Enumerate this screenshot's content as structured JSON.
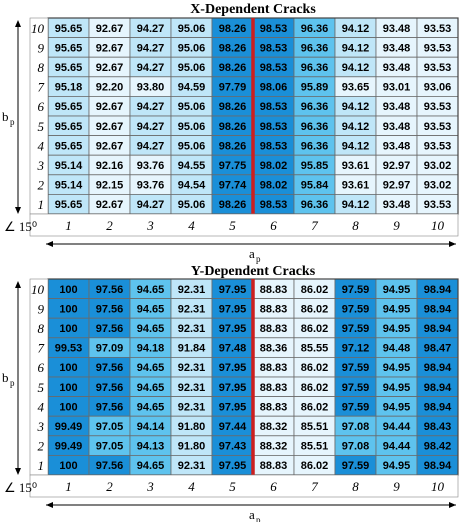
{
  "chart_data": [
    {
      "type": "heatmap",
      "title": "X-Dependent Cracks",
      "xlabel": "a",
      "xlabel_sub": "p",
      "ylabel": "b",
      "ylabel_sub": "p",
      "corner_label": "∠ 15⁰",
      "x_categories": [
        "1",
        "2",
        "3",
        "4",
        "5",
        "6",
        "7",
        "8",
        "9",
        "10"
      ],
      "y_categories": [
        "10",
        "9",
        "8",
        "7",
        "6",
        "5",
        "4",
        "3",
        "2",
        "1"
      ],
      "values": [
        [
          "95.65",
          "92.67",
          "94.27",
          "95.06",
          "98.26",
          "98.53",
          "96.36",
          "94.12",
          "93.48",
          "93.53"
        ],
        [
          "95.65",
          "92.67",
          "94.27",
          "95.06",
          "98.26",
          "98.53",
          "96.36",
          "94.12",
          "93.48",
          "93.53"
        ],
        [
          "95.65",
          "92.67",
          "94.27",
          "95.06",
          "98.26",
          "98.53",
          "96.36",
          "94.12",
          "93.48",
          "93.53"
        ],
        [
          "95.18",
          "92.20",
          "93.80",
          "94.59",
          "97.79",
          "98.06",
          "95.89",
          "93.65",
          "93.01",
          "93.06"
        ],
        [
          "95.65",
          "92.67",
          "94.27",
          "95.06",
          "98.26",
          "98.53",
          "96.36",
          "94.12",
          "93.48",
          "93.53"
        ],
        [
          "95.65",
          "92.67",
          "94.27",
          "95.06",
          "98.26",
          "98.53",
          "96.36",
          "94.12",
          "93.48",
          "93.53"
        ],
        [
          "95.65",
          "92.67",
          "94.27",
          "95.06",
          "98.26",
          "98.53",
          "96.36",
          "94.12",
          "93.48",
          "93.53"
        ],
        [
          "95.14",
          "92.16",
          "93.76",
          "94.55",
          "97.75",
          "98.02",
          "95.85",
          "93.61",
          "92.97",
          "93.02"
        ],
        [
          "95.14",
          "92.15",
          "93.76",
          "94.54",
          "97.74",
          "98.02",
          "95.84",
          "93.61",
          "92.97",
          "93.02"
        ],
        [
          "95.65",
          "92.67",
          "94.27",
          "95.06",
          "98.26",
          "98.53",
          "96.36",
          "94.12",
          "93.48",
          "93.53"
        ]
      ],
      "highlight_after_column": "5",
      "colors": {
        "dark": "#1a8fd8",
        "mid": "#5ec3ee",
        "light": "#bfe6f8",
        "pale": "#e6f5fd",
        "divider": "#cc1f1f"
      }
    },
    {
      "type": "heatmap",
      "title": "Y-Dependent Cracks",
      "xlabel": "a",
      "xlabel_sub": "p",
      "ylabel": "b",
      "ylabel_sub": "p",
      "corner_label": "∠ 15⁰",
      "x_categories": [
        "1",
        "2",
        "3",
        "4",
        "5",
        "6",
        "7",
        "8",
        "9",
        "10"
      ],
      "y_categories": [
        "10",
        "9",
        "8",
        "7",
        "6",
        "5",
        "4",
        "3",
        "2",
        "1"
      ],
      "values": [
        [
          "100",
          "97.56",
          "94.65",
          "92.31",
          "97.95",
          "88.83",
          "86.02",
          "97.59",
          "94.95",
          "98.94"
        ],
        [
          "100",
          "97.56",
          "94.65",
          "92.31",
          "97.95",
          "88.83",
          "86.02",
          "97.59",
          "94.95",
          "98.94"
        ],
        [
          "100",
          "97.56",
          "94.65",
          "92.31",
          "97.95",
          "88.83",
          "86.02",
          "97.59",
          "94.95",
          "98.94"
        ],
        [
          "99.53",
          "97.09",
          "94.18",
          "91.84",
          "97.48",
          "88.36",
          "85.55",
          "97.12",
          "94.48",
          "98.47"
        ],
        [
          "100",
          "97.56",
          "94.65",
          "92.31",
          "97.95",
          "88.83",
          "86.02",
          "97.59",
          "94.95",
          "98.94"
        ],
        [
          "100",
          "97.56",
          "94.65",
          "92.31",
          "97.95",
          "88.83",
          "86.02",
          "97.59",
          "94.95",
          "98.94"
        ],
        [
          "100",
          "97.56",
          "94.65",
          "92.31",
          "97.95",
          "88.83",
          "86.02",
          "97.59",
          "94.95",
          "98.94"
        ],
        [
          "99.49",
          "97.05",
          "94.14",
          "91.80",
          "97.44",
          "88.32",
          "85.51",
          "97.08",
          "94.44",
          "98.43"
        ],
        [
          "99.49",
          "97.05",
          "94.13",
          "91.80",
          "97.43",
          "88.32",
          "85.51",
          "97.08",
          "94.44",
          "98.42"
        ],
        [
          "100",
          "97.56",
          "94.65",
          "92.31",
          "97.95",
          "88.83",
          "86.02",
          "97.59",
          "94.95",
          "98.94"
        ]
      ],
      "highlight_after_column": "5",
      "colors": {
        "dark": "#1a8fd8",
        "mid": "#5ec3ee",
        "light": "#bfe6f8",
        "pale": "#e6f5fd",
        "divider": "#cc1f1f"
      }
    }
  ]
}
